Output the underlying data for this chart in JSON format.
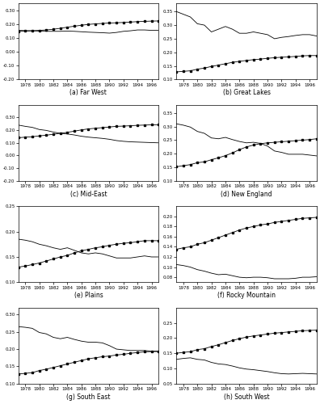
{
  "years": [
    1977,
    1978,
    1979,
    1980,
    1981,
    1982,
    1983,
    1984,
    1985,
    1986,
    1987,
    1988,
    1989,
    1990,
    1991,
    1992,
    1993,
    1994,
    1995,
    1996,
    1997
  ],
  "regions": [
    "Far West",
    "Great Lakes",
    "Mid-East",
    "New England",
    "Plains",
    "Rocky Mountain",
    "South East",
    "South West"
  ],
  "labels": [
    "(a) Far West",
    "(b) Great Lakes",
    "(c) Mid-East",
    "(d) New England",
    "(e) Plains",
    "(f) Rocky Mountain",
    "(g) South East",
    "(h) South West"
  ],
  "mfg_share": {
    "Far West": [
      0.155,
      0.153,
      0.152,
      0.15,
      0.148,
      0.148,
      0.148,
      0.15,
      0.148,
      0.145,
      0.142,
      0.14,
      0.138,
      0.135,
      0.14,
      0.148,
      0.152,
      0.158,
      0.158,
      0.155,
      0.155
    ],
    "Great Lakes": [
      0.35,
      0.34,
      0.33,
      0.305,
      0.3,
      0.275,
      0.285,
      0.295,
      0.285,
      0.27,
      0.27,
      0.275,
      0.27,
      0.265,
      0.25,
      0.255,
      0.258,
      0.262,
      0.265,
      0.265,
      0.26
    ],
    "Mid-East": [
      0.24,
      0.23,
      0.222,
      0.205,
      0.198,
      0.185,
      0.175,
      0.17,
      0.162,
      0.152,
      0.145,
      0.14,
      0.135,
      0.128,
      0.118,
      0.112,
      0.108,
      0.106,
      0.104,
      0.102,
      0.1
    ],
    "New England": [
      0.31,
      0.305,
      0.298,
      0.282,
      0.275,
      0.258,
      0.255,
      0.26,
      0.252,
      0.245,
      0.24,
      0.242,
      0.238,
      0.228,
      0.21,
      0.205,
      0.198,
      0.198,
      0.198,
      0.195,
      0.192
    ],
    "Plains": [
      0.185,
      0.183,
      0.18,
      0.175,
      0.172,
      0.168,
      0.165,
      0.168,
      0.163,
      0.158,
      0.156,
      0.158,
      0.156,
      0.152,
      0.148,
      0.148,
      0.148,
      0.15,
      0.152,
      0.15,
      0.15
    ],
    "Rocky Mountain": [
      0.105,
      0.103,
      0.1,
      0.095,
      0.092,
      0.088,
      0.085,
      0.086,
      0.083,
      0.08,
      0.079,
      0.08,
      0.08,
      0.079,
      0.077,
      0.077,
      0.077,
      0.078,
      0.08,
      0.08,
      0.081
    ],
    "South East": [
      0.265,
      0.263,
      0.26,
      0.248,
      0.244,
      0.234,
      0.23,
      0.234,
      0.228,
      0.223,
      0.22,
      0.22,
      0.218,
      0.21,
      0.2,
      0.198,
      0.196,
      0.196,
      0.196,
      0.194,
      0.194
    ],
    "South West": [
      0.13,
      0.133,
      0.135,
      0.13,
      0.128,
      0.12,
      0.115,
      0.113,
      0.108,
      0.102,
      0.098,
      0.096,
      0.093,
      0.09,
      0.086,
      0.083,
      0.082,
      0.083,
      0.084,
      0.083,
      0.082
    ]
  },
  "svc_share": {
    "Far West": [
      0.148,
      0.15,
      0.152,
      0.155,
      0.158,
      0.163,
      0.17,
      0.178,
      0.185,
      0.192,
      0.198,
      0.202,
      0.205,
      0.208,
      0.21,
      0.212,
      0.215,
      0.218,
      0.22,
      0.222,
      0.223
    ],
    "Great Lakes": [
      0.128,
      0.13,
      0.132,
      0.138,
      0.142,
      0.148,
      0.153,
      0.158,
      0.163,
      0.167,
      0.17,
      0.173,
      0.175,
      0.178,
      0.18,
      0.182,
      0.183,
      0.185,
      0.187,
      0.188,
      0.188
    ],
    "Mid-East": [
      0.14,
      0.145,
      0.148,
      0.155,
      0.16,
      0.168,
      0.175,
      0.183,
      0.192,
      0.202,
      0.21,
      0.215,
      0.22,
      0.225,
      0.23,
      0.232,
      0.235,
      0.238,
      0.24,
      0.242,
      0.243
    ],
    "New England": [
      0.152,
      0.156,
      0.16,
      0.167,
      0.17,
      0.178,
      0.185,
      0.193,
      0.203,
      0.215,
      0.225,
      0.232,
      0.237,
      0.24,
      0.242,
      0.244,
      0.246,
      0.248,
      0.25,
      0.252,
      0.255
    ],
    "Plains": [
      0.13,
      0.132,
      0.135,
      0.138,
      0.142,
      0.146,
      0.15,
      0.153,
      0.158,
      0.162,
      0.165,
      0.168,
      0.17,
      0.173,
      0.175,
      0.177,
      0.178,
      0.18,
      0.182,
      0.182,
      0.182
    ],
    "Rocky Mountain": [
      0.135,
      0.138,
      0.14,
      0.145,
      0.148,
      0.153,
      0.158,
      0.163,
      0.168,
      0.173,
      0.177,
      0.18,
      0.183,
      0.185,
      0.188,
      0.19,
      0.192,
      0.194,
      0.196,
      0.197,
      0.198
    ],
    "South East": [
      0.128,
      0.13,
      0.132,
      0.138,
      0.142,
      0.147,
      0.152,
      0.157,
      0.162,
      0.167,
      0.172,
      0.175,
      0.178,
      0.18,
      0.183,
      0.185,
      0.188,
      0.19,
      0.192,
      0.193,
      0.193
    ],
    "South West": [
      0.15,
      0.153,
      0.155,
      0.162,
      0.165,
      0.172,
      0.178,
      0.185,
      0.192,
      0.198,
      0.203,
      0.207,
      0.21,
      0.213,
      0.216,
      0.218,
      0.22,
      0.222,
      0.224,
      0.225,
      0.226
    ]
  },
  "ylims": {
    "Far West": [
      -0.2,
      0.35
    ],
    "Great Lakes": [
      0.1,
      0.38
    ],
    "Mid-East": [
      -0.2,
      0.4
    ],
    "New England": [
      0.1,
      0.38
    ],
    "Plains": [
      0.1,
      0.25
    ],
    "Rocky Mountain": [
      0.07,
      0.22
    ],
    "South East": [
      0.1,
      0.32
    ],
    "South West": [
      0.05,
      0.3
    ]
  },
  "yticks": {
    "Far West": [
      -0.2,
      -0.1,
      0.0,
      0.1,
      0.2,
      0.3
    ],
    "Great Lakes": [
      0.1,
      0.15,
      0.2,
      0.25,
      0.3,
      0.35
    ],
    "Mid-East": [
      -0.2,
      -0.1,
      0.0,
      0.1,
      0.2,
      0.3
    ],
    "New England": [
      0.1,
      0.15,
      0.2,
      0.25,
      0.3,
      0.35
    ],
    "Plains": [
      0.1,
      0.15,
      0.2,
      0.25
    ],
    "Rocky Mountain": [
      0.08,
      0.1,
      0.12,
      0.14,
      0.16,
      0.18,
      0.2
    ],
    "South East": [
      0.1,
      0.15,
      0.2,
      0.25,
      0.3
    ],
    "South West": [
      0.05,
      0.1,
      0.15,
      0.2,
      0.25
    ]
  }
}
